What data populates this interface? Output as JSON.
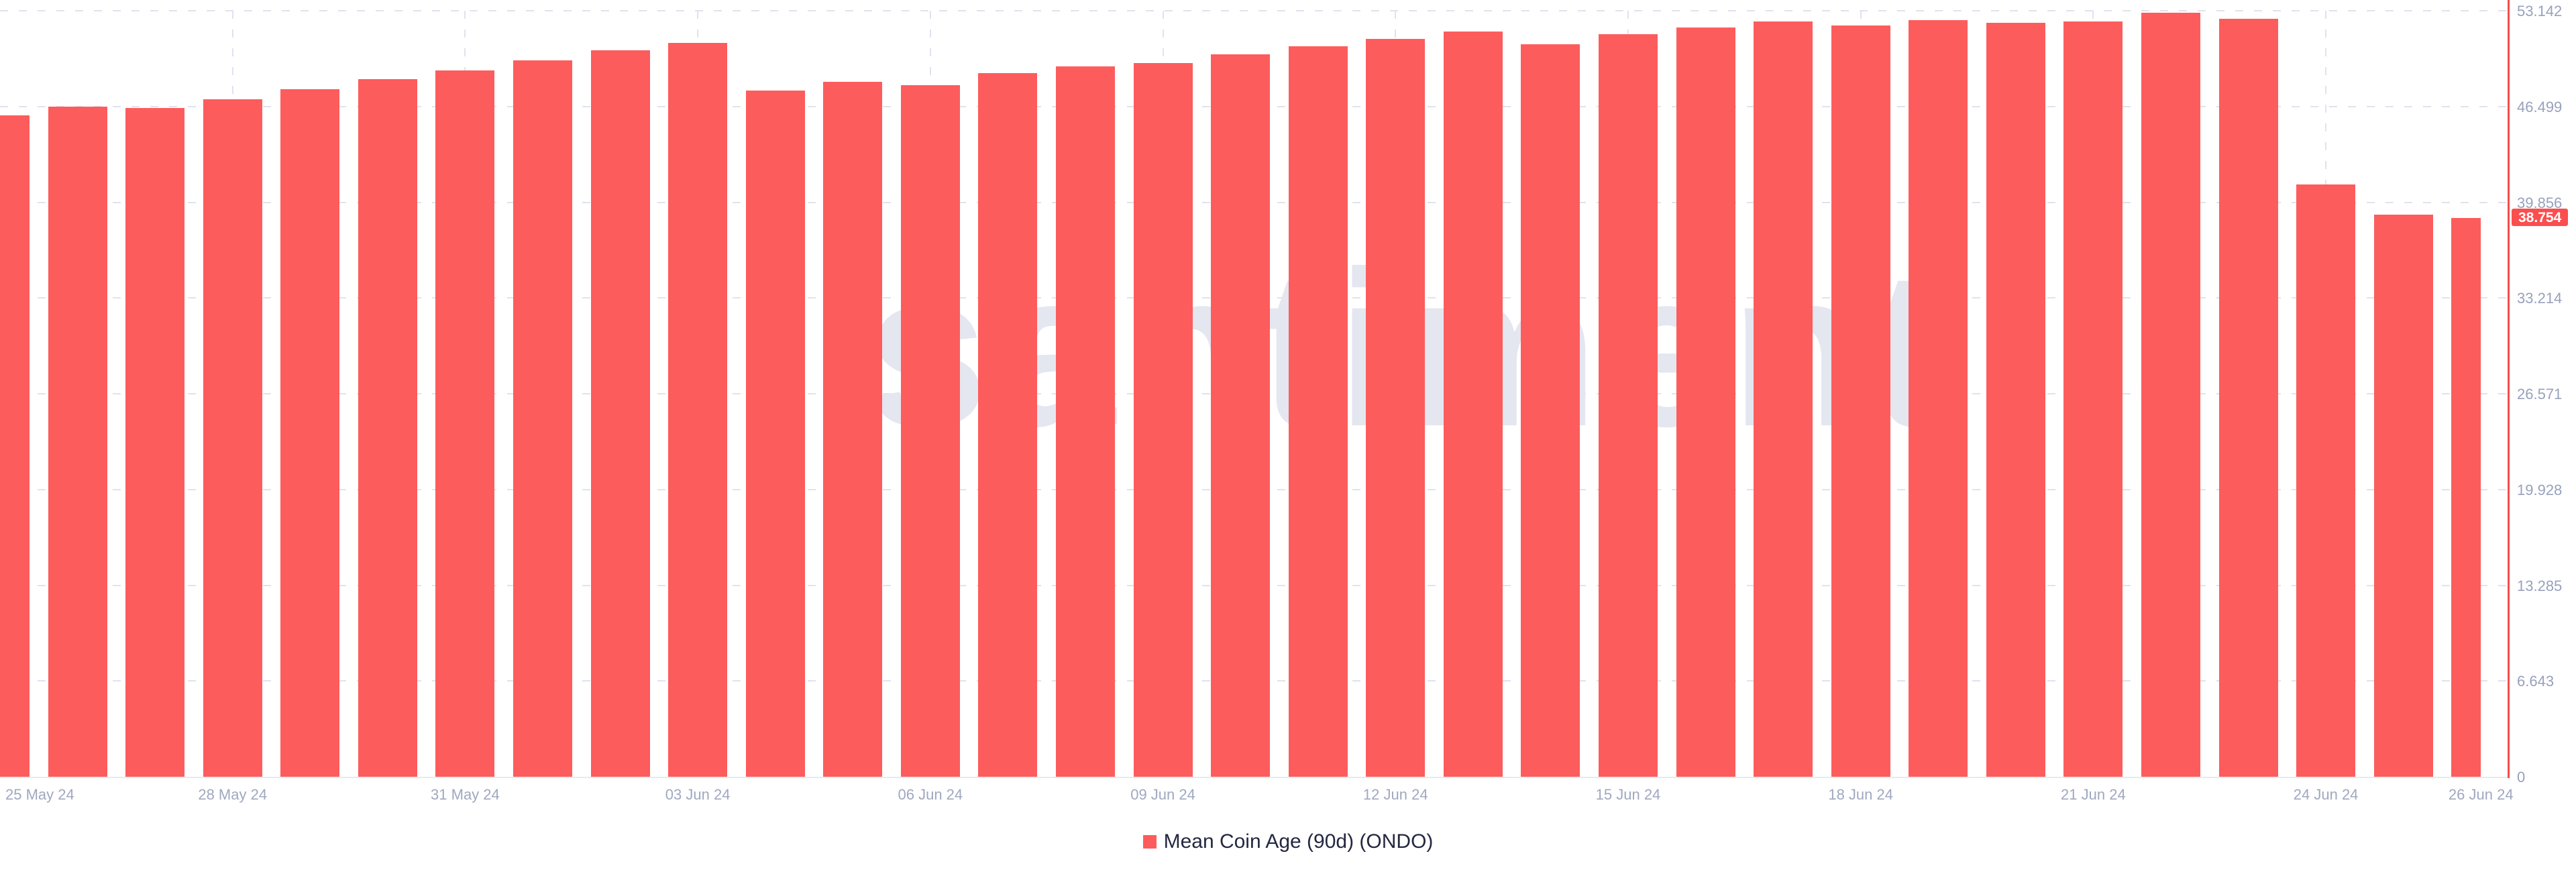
{
  "watermark": "santiment",
  "legend": {
    "label": "Mean Coin Age (90d) (ONDO)"
  },
  "colors": {
    "bar": "#fd5c5c",
    "axis_line": "#f94b4b",
    "grid": "#dfe3ee",
    "baseline": "#e8eaf0",
    "tick_label": "#98a1bc",
    "badge_bg": "#fb4e4e",
    "badge_text": "#ffffff",
    "legend_text": "#232840",
    "watermark": "#e4e6f0"
  },
  "y_axis": {
    "ticks": [
      {
        "label": "53.142",
        "value": 53.142
      },
      {
        "label": "46.499",
        "value": 46.499
      },
      {
        "label": "39.856",
        "value": 39.856
      },
      {
        "label": "33.214",
        "value": 33.214
      },
      {
        "label": "26.571",
        "value": 26.571
      },
      {
        "label": "19.928",
        "value": 19.928
      },
      {
        "label": "13.285",
        "value": 13.285
      },
      {
        "label": "6.643",
        "value": 6.643
      },
      {
        "label": "0",
        "value": 0
      }
    ],
    "current_badge": {
      "label": "38.754",
      "value": 38.754
    }
  },
  "x_axis": {
    "ticks": [
      {
        "label": "25 May 24",
        "day": 0
      },
      {
        "label": "28 May 24",
        "day": 3
      },
      {
        "label": "31 May 24",
        "day": 6
      },
      {
        "label": "03 Jun 24",
        "day": 9
      },
      {
        "label": "06 Jun 24",
        "day": 12
      },
      {
        "label": "09 Jun 24",
        "day": 15
      },
      {
        "label": "12 Jun 24",
        "day": 18
      },
      {
        "label": "15 Jun 24",
        "day": 21
      },
      {
        "label": "18 Jun 24",
        "day": 24
      },
      {
        "label": "21 Jun 24",
        "day": 27
      },
      {
        "label": "24 Jun 24",
        "day": 30
      },
      {
        "label": "26 Jun 24",
        "day": 32
      }
    ]
  },
  "chart_data": {
    "type": "bar",
    "title": "Mean Coin Age (90d) (ONDO)",
    "x": [
      "25 May 24",
      "26 May 24",
      "27 May 24",
      "28 May 24",
      "29 May 24",
      "30 May 24",
      "31 May 24",
      "01 Jun 24",
      "02 Jun 24",
      "03 Jun 24",
      "04 Jun 24",
      "05 Jun 24",
      "06 Jun 24",
      "07 Jun 24",
      "08 Jun 24",
      "09 Jun 24",
      "10 Jun 24",
      "11 Jun 24",
      "12 Jun 24",
      "13 Jun 24",
      "14 Jun 24",
      "15 Jun 24",
      "16 Jun 24",
      "17 Jun 24",
      "18 Jun 24",
      "19 Jun 24",
      "20 Jun 24",
      "21 Jun 24",
      "22 Jun 24",
      "23 Jun 24",
      "24 Jun 24",
      "25 Jun 24",
      "26 Jun 24"
    ],
    "values": [
      45.9,
      46.5,
      46.4,
      47.0,
      47.7,
      48.4,
      49.0,
      49.7,
      50.4,
      50.9,
      47.6,
      48.2,
      48.0,
      48.8,
      49.3,
      49.5,
      50.1,
      50.7,
      51.2,
      51.7,
      50.8,
      51.5,
      52.0,
      52.4,
      52.1,
      52.5,
      52.3,
      52.4,
      53.0,
      52.6,
      41.1,
      39.0,
      38.754
    ],
    "series": [
      {
        "name": "Mean Coin Age (90d) (ONDO)",
        "values_ref": "values"
      }
    ],
    "ylim": [
      0,
      53.142
    ],
    "y_tick_values": [
      0,
      6.643,
      13.285,
      19.928,
      26.571,
      33.214,
      39.856,
      46.499,
      53.142
    ],
    "xlabel": "",
    "ylabel": "",
    "grid": "dashed",
    "legend_position": "bottom",
    "last_value_highlighted": 38.754
  }
}
